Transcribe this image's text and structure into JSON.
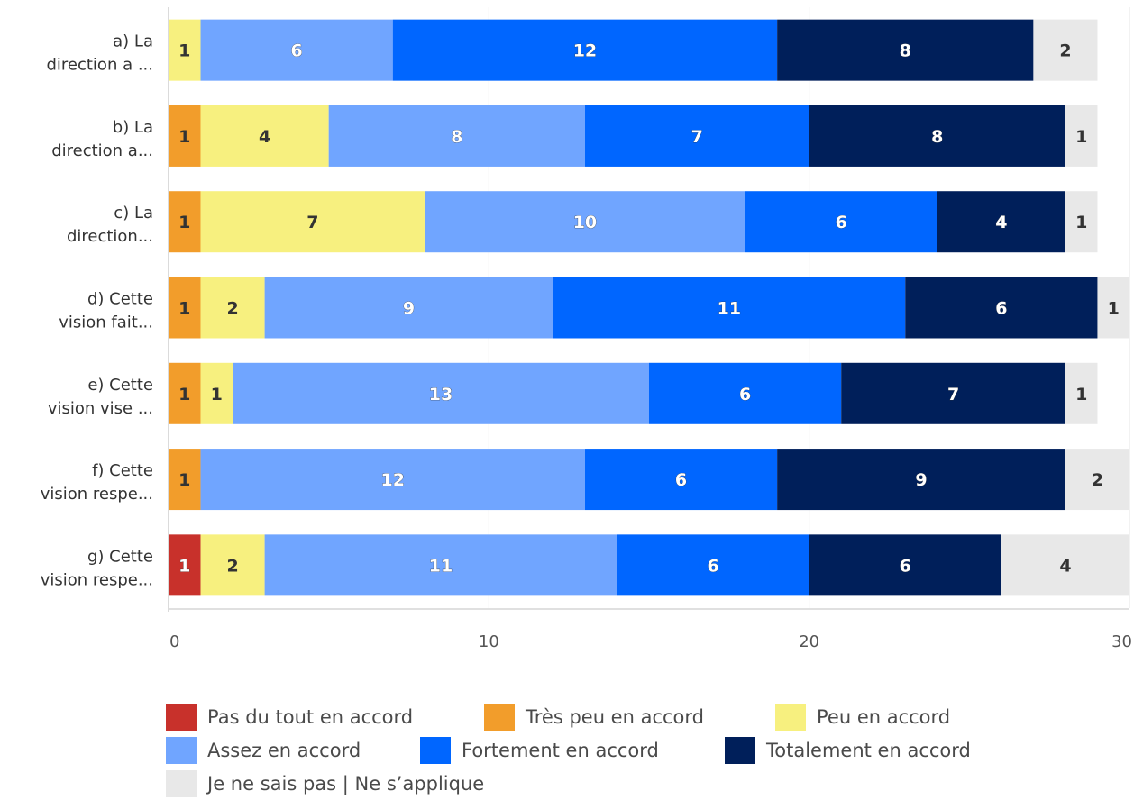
{
  "chart_data": {
    "type": "bar",
    "orientation": "horizontal",
    "stacked": true,
    "categories": [
      "a) La direction a ...",
      "b) La direction a...",
      "c) La direction...",
      "d) Cette vision fait...",
      "e) Cette vision vise ...",
      "f) Cette vision respe...",
      "g) Cette vision respe..."
    ],
    "category_lines": [
      [
        "a) La",
        "direction a ..."
      ],
      [
        "b) La",
        "direction a..."
      ],
      [
        "c) La",
        "direction..."
      ],
      [
        "d) Cette",
        "vision fait..."
      ],
      [
        "e) Cette",
        "vision vise ..."
      ],
      [
        "f) Cette",
        "vision respe..."
      ],
      [
        "g) Cette",
        "vision respe..."
      ]
    ],
    "series": [
      {
        "name": "Pas du tout en accord",
        "color": "#c8312b",
        "values": [
          0,
          0,
          0,
          0,
          0,
          0,
          1
        ]
      },
      {
        "name": "Très peu en accord",
        "color": "#f29d2b",
        "values": [
          0,
          1,
          1,
          1,
          1,
          1,
          0
        ]
      },
      {
        "name": "Peu en accord",
        "color": "#f7f07f",
        "values": [
          1,
          4,
          7,
          2,
          1,
          0,
          2
        ]
      },
      {
        "name": "Assez en accord",
        "color": "#70a5ff",
        "values": [
          6,
          8,
          10,
          9,
          13,
          12,
          11
        ]
      },
      {
        "name": "Fortement en accord",
        "color": "#0066ff",
        "values": [
          12,
          7,
          6,
          11,
          6,
          6,
          6
        ]
      },
      {
        "name": "Totalement en accord",
        "color": "#001f5a",
        "values": [
          8,
          8,
          4,
          6,
          7,
          9,
          6
        ]
      },
      {
        "name": "Je ne sais pas | Ne s’applique",
        "color": "#e8e8e8",
        "values": [
          2,
          1,
          1,
          1,
          1,
          2,
          4
        ]
      }
    ],
    "xlim": [
      0,
      30
    ],
    "xticks": [
      "0",
      "10",
      "20",
      "30"
    ],
    "grid": true,
    "legend_position": "bottom"
  },
  "legend": {
    "rows": [
      [
        "Pas du tout en accord",
        "Très peu en accord",
        "Peu en accord"
      ],
      [
        "Assez en accord",
        "Fortement en accord",
        "Totalement en accord"
      ],
      [
        "Je ne sais pas | Ne s’applique"
      ]
    ]
  }
}
